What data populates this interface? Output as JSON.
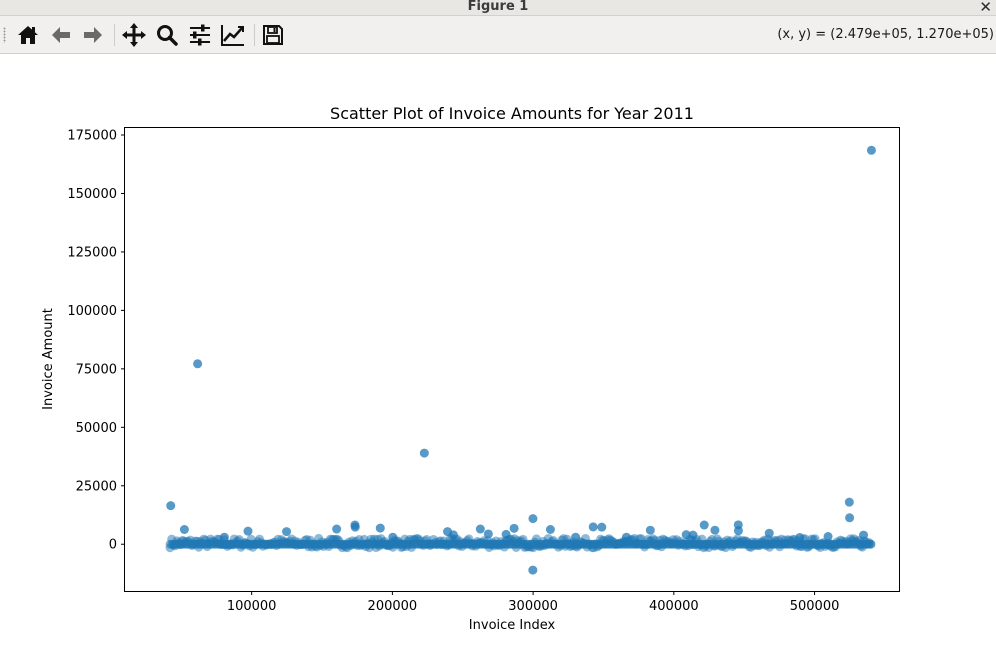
{
  "window": {
    "title": "Figure 1",
    "close_symbol": "✕"
  },
  "toolbar": {
    "buttons": [
      {
        "name": "home-button",
        "icon": "home-icon"
      },
      {
        "name": "back-button",
        "icon": "arrow-left-icon"
      },
      {
        "name": "forward-button",
        "icon": "arrow-right-icon"
      },
      {
        "name": "pan-button",
        "icon": "move-icon"
      },
      {
        "name": "zoom-button",
        "icon": "magnifier-icon"
      },
      {
        "name": "configure-subplots-button",
        "icon": "sliders-icon"
      },
      {
        "name": "edit-axis-button",
        "icon": "line-chart-icon"
      },
      {
        "name": "save-button",
        "icon": "floppy-disk-icon"
      }
    ],
    "coordinates": "(x, y) = (2.479e+05, 1.270e+05)"
  },
  "chart_data": {
    "type": "scatter",
    "title": "Scatter Plot of Invoice Amounts for Year 2011",
    "xlabel": "Invoice Index",
    "ylabel": "Invoice Amount",
    "xlim": [
      10000,
      560000
    ],
    "ylim": [
      -20000,
      178000
    ],
    "xticks": [
      100000,
      200000,
      300000,
      400000,
      500000
    ],
    "yticks": [
      0,
      25000,
      50000,
      75000,
      100000,
      125000,
      150000,
      175000
    ],
    "color": "#1f77b4",
    "alpha": 0.5,
    "grid": false,
    "dense_band": {
      "x_start": 42000,
      "x_end": 541000,
      "y_min": -1500,
      "y_max": 2500
    },
    "outliers": [
      {
        "x": 540400,
        "y": 168470
      },
      {
        "x": 61600,
        "y": 77180
      },
      {
        "x": 222700,
        "y": 38970
      },
      {
        "x": 42500,
        "y": 16500
      },
      {
        "x": 524700,
        "y": 18000
      },
      {
        "x": 524900,
        "y": 11300
      },
      {
        "x": 299900,
        "y": 10950
      },
      {
        "x": 173400,
        "y": 8200
      },
      {
        "x": 173600,
        "y": 7300
      },
      {
        "x": 421600,
        "y": 8200
      },
      {
        "x": 445800,
        "y": 8300
      },
      {
        "x": 342700,
        "y": 7400
      },
      {
        "x": 348800,
        "y": 7300
      },
      {
        "x": 191400,
        "y": 6900
      },
      {
        "x": 160400,
        "y": 6500
      },
      {
        "x": 262500,
        "y": 6500
      },
      {
        "x": 286500,
        "y": 6800
      },
      {
        "x": 312300,
        "y": 6300
      },
      {
        "x": 383300,
        "y": 6000
      },
      {
        "x": 429200,
        "y": 6000
      },
      {
        "x": 445900,
        "y": 5800
      },
      {
        "x": 97400,
        "y": 5600
      },
      {
        "x": 124800,
        "y": 5400
      },
      {
        "x": 239200,
        "y": 5400
      },
      {
        "x": 52200,
        "y": 6300
      },
      {
        "x": 467800,
        "y": 4700
      },
      {
        "x": 268200,
        "y": 4400
      },
      {
        "x": 243400,
        "y": 4000
      },
      {
        "x": 280800,
        "y": 4200
      },
      {
        "x": 408800,
        "y": 4100
      },
      {
        "x": 413600,
        "y": 3900
      },
      {
        "x": 534800,
        "y": 3900
      },
      {
        "x": 509600,
        "y": 3300
      },
      {
        "x": 80600,
        "y": 3000
      },
      {
        "x": 200300,
        "y": 3000
      },
      {
        "x": 330200,
        "y": 3000
      },
      {
        "x": 366300,
        "y": 3000
      },
      {
        "x": 489500,
        "y": 2900
      },
      {
        "x": 299800,
        "y": -11060
      }
    ]
  }
}
